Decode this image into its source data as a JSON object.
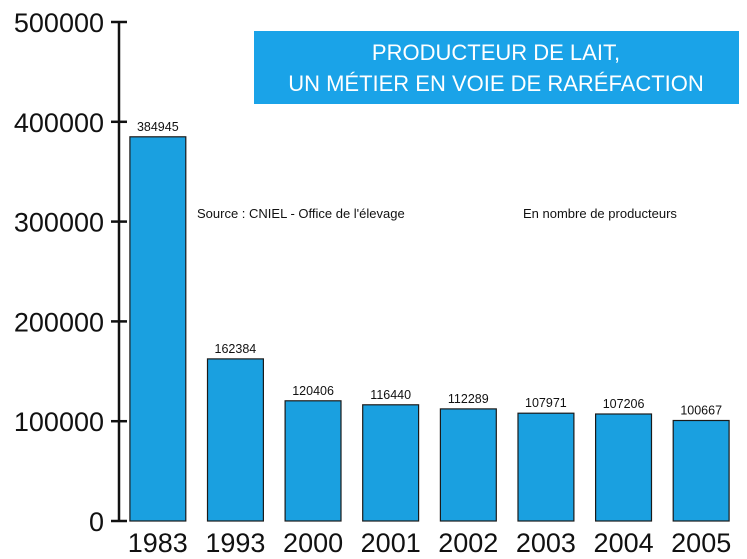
{
  "chart_data": {
    "type": "bar",
    "title_lines": [
      "PRODUCTEUR DE LAIT,",
      "UN MÉTIER EN VOIE DE RARÉFACTION"
    ],
    "source": "Source : CNIEL - Office de l'élevage",
    "unit_note": "En nombre de producteurs",
    "categories": [
      "1983",
      "1993",
      "2000",
      "2001",
      "2002",
      "2003",
      "2004",
      "2005"
    ],
    "values": [
      384945,
      162384,
      120406,
      116440,
      112289,
      107971,
      107206,
      100667
    ],
    "data_labels": [
      "384945",
      "162384",
      "120406",
      "116440",
      "112289",
      "107971",
      "107206",
      "100667"
    ],
    "yticks": [
      0,
      100000,
      200000,
      300000,
      400000,
      500000
    ],
    "ytick_labels": [
      "0",
      "100000",
      "200000",
      "300000",
      "400000",
      "500000"
    ],
    "ylim": [
      0,
      500000
    ],
    "grid": false,
    "colors": {
      "bar": "#1aa0e0",
      "bar_stroke": "#1a1a1a",
      "title_bg": "#1aa3e8",
      "title_text": "#ffffff",
      "axis": "#111111"
    }
  }
}
